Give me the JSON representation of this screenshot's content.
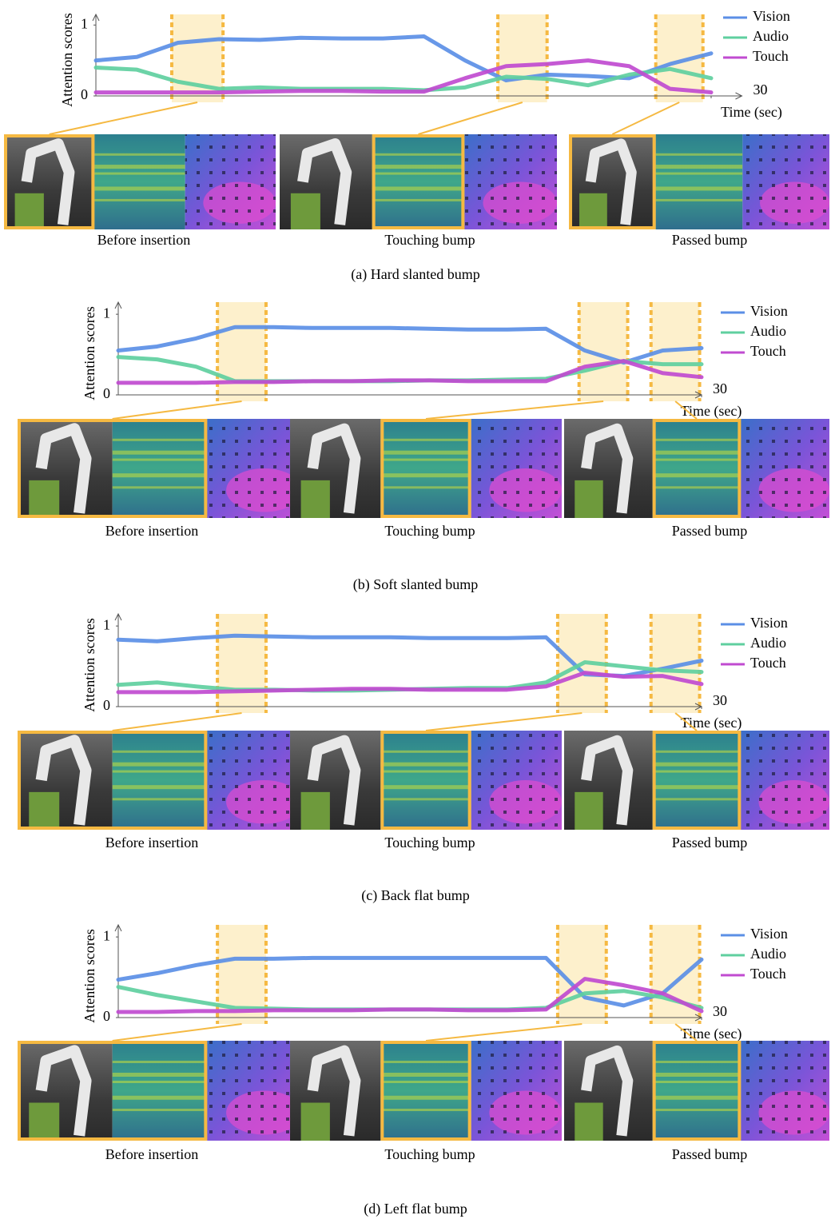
{
  "chart_data": [
    {
      "type": "line",
      "caption": "(a) Hard slanted bump",
      "ylabel": "Attention scores",
      "xlabel": "Time (sec)",
      "xlim": [
        0,
        31.5
      ],
      "xticks": [
        30
      ],
      "ylim": [
        0,
        1.15
      ],
      "yticks": [
        0,
        1
      ],
      "highlight_spans": [
        [
          3.7,
          6.2
        ],
        [
          19.6,
          22.0
        ],
        [
          27.3,
          29.6
        ]
      ],
      "frame_labels": [
        "Before insertion",
        "Touching bump",
        "Passed bump"
      ],
      "x": [
        0,
        2,
        4,
        6,
        8,
        10,
        12,
        14,
        16,
        18,
        20,
        22,
        24,
        26,
        28,
        30
      ],
      "series": [
        {
          "name": "Vision",
          "color": "#5b8fe6",
          "values": [
            0.5,
            0.55,
            0.75,
            0.8,
            0.79,
            0.82,
            0.81,
            0.81,
            0.84,
            0.5,
            0.22,
            0.3,
            0.28,
            0.25,
            0.45,
            0.6
          ]
        },
        {
          "name": "Audio",
          "color": "#5fcf9f",
          "values": [
            0.4,
            0.37,
            0.2,
            0.1,
            0.12,
            0.1,
            0.1,
            0.1,
            0.08,
            0.12,
            0.27,
            0.24,
            0.15,
            0.3,
            0.38,
            0.25
          ]
        },
        {
          "name": "Touch",
          "color": "#c04bd0",
          "values": [
            0.05,
            0.05,
            0.05,
            0.05,
            0.06,
            0.07,
            0.07,
            0.06,
            0.06,
            0.25,
            0.42,
            0.45,
            0.5,
            0.42,
            0.1,
            0.05
          ]
        }
      ]
    },
    {
      "type": "line",
      "caption": "(b) Soft slanted bump",
      "ylabel": "Attention scores",
      "xlabel": "Time (sec)",
      "xlim": [
        0,
        30
      ],
      "xticks": [
        30
      ],
      "ylim": [
        0,
        1.15
      ],
      "yticks": [
        0,
        1
      ],
      "highlight_spans": [
        [
          5.1,
          7.6
        ],
        [
          23.7,
          26.2
        ],
        [
          27.4,
          29.9
        ]
      ],
      "frame_labels": [
        "Before insertion",
        "Touching bump",
        "Passed bump"
      ],
      "x": [
        0,
        2,
        4,
        6,
        8,
        10,
        12,
        14,
        16,
        18,
        20,
        22,
        24,
        26,
        28,
        30
      ],
      "series": [
        {
          "name": "Vision",
          "color": "#5b8fe6",
          "values": [
            0.55,
            0.6,
            0.7,
            0.84,
            0.84,
            0.83,
            0.83,
            0.83,
            0.82,
            0.81,
            0.81,
            0.82,
            0.55,
            0.4,
            0.55,
            0.58
          ]
        },
        {
          "name": "Audio",
          "color": "#5fcf9f",
          "values": [
            0.47,
            0.44,
            0.35,
            0.17,
            0.17,
            0.17,
            0.17,
            0.17,
            0.18,
            0.18,
            0.19,
            0.2,
            0.3,
            0.42,
            0.38,
            0.38
          ]
        },
        {
          "name": "Touch",
          "color": "#c04bd0",
          "values": [
            0.15,
            0.15,
            0.15,
            0.16,
            0.16,
            0.17,
            0.17,
            0.18,
            0.18,
            0.17,
            0.17,
            0.17,
            0.35,
            0.42,
            0.27,
            0.22
          ]
        }
      ]
    },
    {
      "type": "line",
      "caption": "(c) Back flat bump",
      "ylabel": "Attention scores",
      "xlabel": "Time (sec)",
      "xlim": [
        0,
        30
      ],
      "xticks": [
        30
      ],
      "ylim": [
        0,
        1.15
      ],
      "yticks": [
        0,
        1
      ],
      "highlight_spans": [
        [
          5.1,
          7.6
        ],
        [
          22.6,
          25.1
        ],
        [
          27.4,
          29.9
        ]
      ],
      "frame_labels": [
        "Before insertion",
        "Touching bump",
        "Passed bump"
      ],
      "x": [
        0,
        2,
        4,
        6,
        8,
        10,
        12,
        14,
        16,
        18,
        20,
        22,
        24,
        26,
        28,
        30
      ],
      "series": [
        {
          "name": "Vision",
          "color": "#5b8fe6",
          "values": [
            0.83,
            0.81,
            0.85,
            0.88,
            0.87,
            0.86,
            0.86,
            0.86,
            0.85,
            0.85,
            0.85,
            0.86,
            0.4,
            0.38,
            0.47,
            0.57
          ]
        },
        {
          "name": "Audio",
          "color": "#5fcf9f",
          "values": [
            0.27,
            0.3,
            0.25,
            0.21,
            0.21,
            0.2,
            0.2,
            0.21,
            0.22,
            0.23,
            0.23,
            0.3,
            0.55,
            0.5,
            0.45,
            0.43
          ]
        },
        {
          "name": "Touch",
          "color": "#c04bd0",
          "values": [
            0.18,
            0.18,
            0.18,
            0.19,
            0.2,
            0.21,
            0.22,
            0.22,
            0.21,
            0.21,
            0.21,
            0.25,
            0.42,
            0.37,
            0.38,
            0.28
          ]
        }
      ]
    },
    {
      "type": "line",
      "caption": "(d) Left flat bump",
      "ylabel": "Attention scores",
      "xlabel": "Time (sec)",
      "xlim": [
        0,
        30
      ],
      "xticks": [
        30
      ],
      "ylim": [
        0,
        1.15
      ],
      "yticks": [
        0,
        1
      ],
      "highlight_spans": [
        [
          5.1,
          7.6
        ],
        [
          22.6,
          25.1
        ],
        [
          27.4,
          29.9
        ]
      ],
      "frame_labels": [
        "Before insertion",
        "Touching bump",
        "Passed bump"
      ],
      "x": [
        0,
        2,
        4,
        6,
        8,
        10,
        12,
        14,
        16,
        18,
        20,
        22,
        24,
        26,
        28,
        30
      ],
      "series": [
        {
          "name": "Vision",
          "color": "#5b8fe6",
          "values": [
            0.47,
            0.55,
            0.65,
            0.73,
            0.73,
            0.74,
            0.74,
            0.74,
            0.74,
            0.74,
            0.74,
            0.74,
            0.25,
            0.15,
            0.3,
            0.72
          ]
        },
        {
          "name": "Audio",
          "color": "#5fcf9f",
          "values": [
            0.38,
            0.28,
            0.2,
            0.12,
            0.11,
            0.1,
            0.1,
            0.1,
            0.1,
            0.1,
            0.1,
            0.12,
            0.3,
            0.33,
            0.25,
            0.12
          ]
        },
        {
          "name": "Touch",
          "color": "#c04bd0",
          "values": [
            0.07,
            0.07,
            0.08,
            0.08,
            0.09,
            0.09,
            0.09,
            0.1,
            0.1,
            0.09,
            0.09,
            0.1,
            0.48,
            0.4,
            0.3,
            0.08
          ]
        }
      ]
    }
  ]
}
